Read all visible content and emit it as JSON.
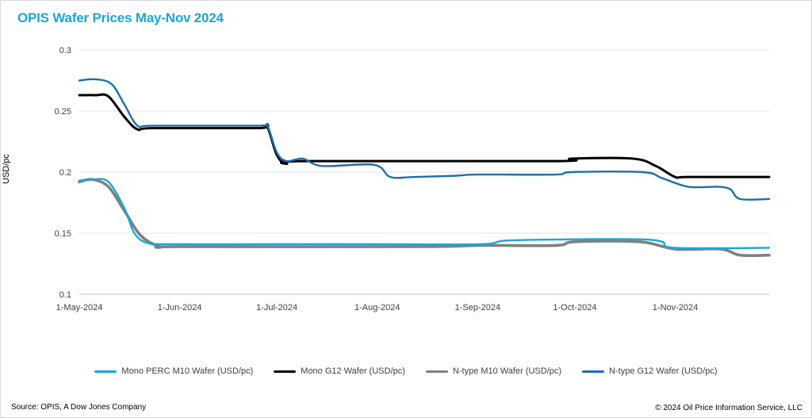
{
  "title": "OPIS Wafer Prices May-Nov 2024",
  "source": "Source: OPIS, A Dow Jones Company",
  "copyright": "© 2024 Oil Price Information Service, LLC",
  "chart_data": {
    "type": "line",
    "title": "OPIS Wafer Prices May-Nov 2024",
    "xlabel": "",
    "ylabel": "USD/pc",
    "x_range": [
      "2024-05-01",
      "2024-11-30"
    ],
    "ylim": [
      0.1,
      0.3
    ],
    "yticks": [
      0.1,
      0.15,
      0.2,
      0.25,
      0.3
    ],
    "ytick_labels": [
      "0.1",
      "0.15",
      "0.2",
      "0.25",
      "0.3"
    ],
    "xticks": [
      "2024-05-01",
      "2024-06-01",
      "2024-07-01",
      "2024-08-01",
      "2024-09-01",
      "2024-10-01",
      "2024-11-01"
    ],
    "xtick_labels": [
      "1-May-2024",
      "1-Jun-2024",
      "1-Jul-2024",
      "1-Aug-2024",
      "1-Sep-2024",
      "1-Oct-2024",
      "1-Nov-2024"
    ],
    "grid": "horizontal",
    "legend": "bottom",
    "series": [
      {
        "name": "Mono PERC M10 Wafer (USD/pc)",
        "color": "#1aa7d8",
        "points": [
          [
            "2024-05-01",
            0.193
          ],
          [
            "2024-05-05",
            0.194
          ],
          [
            "2024-05-10",
            0.192
          ],
          [
            "2024-05-15",
            0.17
          ],
          [
            "2024-05-18",
            0.15
          ],
          [
            "2024-05-22",
            0.142
          ],
          [
            "2024-05-29",
            0.141
          ],
          [
            "2024-07-01",
            0.141
          ],
          [
            "2024-08-01",
            0.141
          ],
          [
            "2024-09-02",
            0.141
          ],
          [
            "2024-09-10",
            0.144
          ],
          [
            "2024-10-01",
            0.145
          ],
          [
            "2024-10-21",
            0.145
          ],
          [
            "2024-10-28",
            0.143
          ],
          [
            "2024-11-01",
            0.138
          ],
          [
            "2024-11-30",
            0.138
          ]
        ]
      },
      {
        "name": "Mono G12 Wafer (USD/pc)",
        "color": "#000000",
        "points": [
          [
            "2024-05-01",
            0.263
          ],
          [
            "2024-05-06",
            0.263
          ],
          [
            "2024-05-10",
            0.262
          ],
          [
            "2024-05-15",
            0.245
          ],
          [
            "2024-05-19",
            0.235
          ],
          [
            "2024-05-24",
            0.236
          ],
          [
            "2024-06-25",
            0.236
          ],
          [
            "2024-06-28",
            0.237
          ],
          [
            "2024-07-01",
            0.214
          ],
          [
            "2024-07-04",
            0.207
          ],
          [
            "2024-07-10",
            0.209
          ],
          [
            "2024-09-25",
            0.209
          ],
          [
            "2024-09-30",
            0.211
          ],
          [
            "2024-10-19",
            0.211
          ],
          [
            "2024-10-26",
            0.205
          ],
          [
            "2024-11-01",
            0.196
          ],
          [
            "2024-11-05",
            0.196
          ],
          [
            "2024-11-30",
            0.196
          ]
        ]
      },
      {
        "name": "N-type M10 Wafer (USD/pc)",
        "color": "#808080",
        "points": [
          [
            "2024-05-01",
            0.192
          ],
          [
            "2024-05-05",
            0.194
          ],
          [
            "2024-05-10",
            0.188
          ],
          [
            "2024-05-15",
            0.168
          ],
          [
            "2024-05-20",
            0.148
          ],
          [
            "2024-05-26",
            0.139
          ],
          [
            "2024-06-01",
            0.139
          ],
          [
            "2024-08-15",
            0.139
          ],
          [
            "2024-09-01",
            0.14
          ],
          [
            "2024-09-25",
            0.14
          ],
          [
            "2024-10-01",
            0.143
          ],
          [
            "2024-10-21",
            0.143
          ],
          [
            "2024-11-01",
            0.137
          ],
          [
            "2024-11-15",
            0.137
          ],
          [
            "2024-11-21",
            0.132
          ],
          [
            "2024-11-30",
            0.132
          ]
        ]
      },
      {
        "name": "N-type G12 Wafer (USD/pc)",
        "color": "#1f6fa8",
        "points": [
          [
            "2024-05-01",
            0.275
          ],
          [
            "2024-05-06",
            0.276
          ],
          [
            "2024-05-11",
            0.272
          ],
          [
            "2024-05-15",
            0.255
          ],
          [
            "2024-05-19",
            0.238
          ],
          [
            "2024-05-24",
            0.238
          ],
          [
            "2024-06-25",
            0.238
          ],
          [
            "2024-06-28",
            0.238
          ],
          [
            "2024-07-01",
            0.216
          ],
          [
            "2024-07-04",
            0.209
          ],
          [
            "2024-07-09",
            0.211
          ],
          [
            "2024-07-15",
            0.205
          ],
          [
            "2024-07-31",
            0.206
          ],
          [
            "2024-08-05",
            0.196
          ],
          [
            "2024-08-12",
            0.196
          ],
          [
            "2024-08-25",
            0.197
          ],
          [
            "2024-09-01",
            0.198
          ],
          [
            "2024-09-25",
            0.198
          ],
          [
            "2024-09-30",
            0.2
          ],
          [
            "2024-10-22",
            0.2
          ],
          [
            "2024-10-28",
            0.195
          ],
          [
            "2024-11-05",
            0.188
          ],
          [
            "2024-11-14",
            0.188
          ],
          [
            "2024-11-18",
            0.186
          ],
          [
            "2024-11-21",
            0.178
          ],
          [
            "2024-11-30",
            0.178
          ]
        ]
      }
    ]
  }
}
